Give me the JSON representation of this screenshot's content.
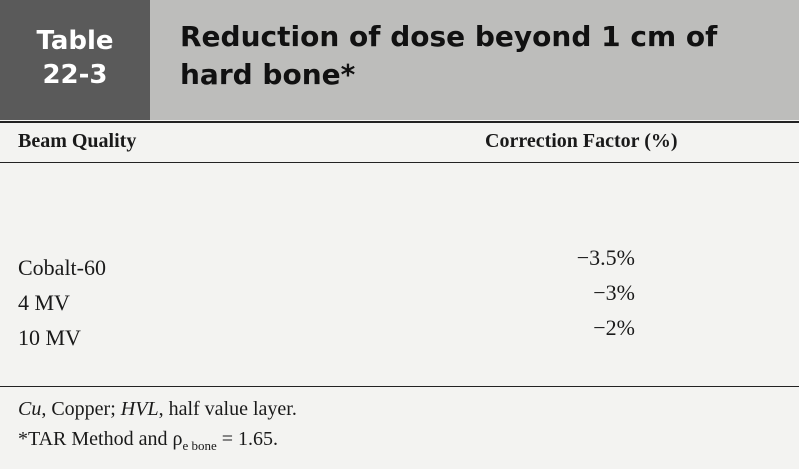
{
  "header": {
    "label": [
      "Table",
      "22-3"
    ],
    "title": "Reduction of dose beyond 1 cm of hard bone*"
  },
  "table": {
    "columns": [
      "Beam Quality",
      "Correction Factor (%)"
    ],
    "rows": [
      [
        "Cobalt-60",
        "−3.5%"
      ],
      [
        "4 MV",
        "−3%"
      ],
      [
        "10 MV",
        "−2%"
      ]
    ]
  },
  "footnotes": [
    [
      "Cu",
      ", Copper; ",
      "HVL",
      ", half value layer."
    ],
    [
      "*TAR Method and ρ",
      "e bone",
      " = 1.65."
    ]
  ]
}
